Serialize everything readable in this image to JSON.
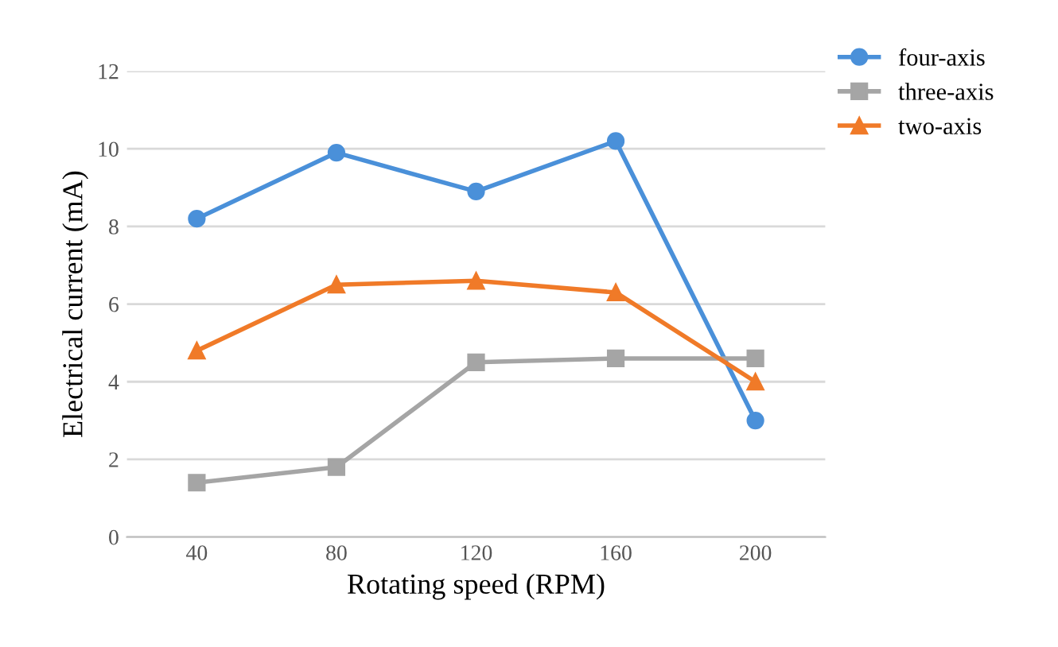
{
  "chart_data": {
    "type": "line",
    "xlabel": "Rotating speed (RPM)",
    "ylabel": "Electrical current (mA)",
    "categories": [
      "40",
      "80",
      "120",
      "160",
      "200"
    ],
    "series": [
      {
        "name": "four-axis",
        "color": "#4a90d9",
        "marker": "circle",
        "values": [
          8.2,
          9.9,
          8.9,
          10.2,
          3.0
        ]
      },
      {
        "name": "three-axis",
        "color": "#a5a5a5",
        "marker": "square",
        "values": [
          1.4,
          1.8,
          4.5,
          4.6,
          4.6
        ]
      },
      {
        "name": "two-axis",
        "color": "#f07a28",
        "marker": "triangle",
        "values": [
          4.8,
          6.5,
          6.6,
          6.3,
          4.0
        ]
      }
    ],
    "ylim": [
      0,
      12
    ],
    "yticks": [
      0,
      2,
      4,
      6,
      8,
      10,
      12
    ],
    "grid": "y",
    "legend": "top right",
    "line_style": "solid"
  }
}
